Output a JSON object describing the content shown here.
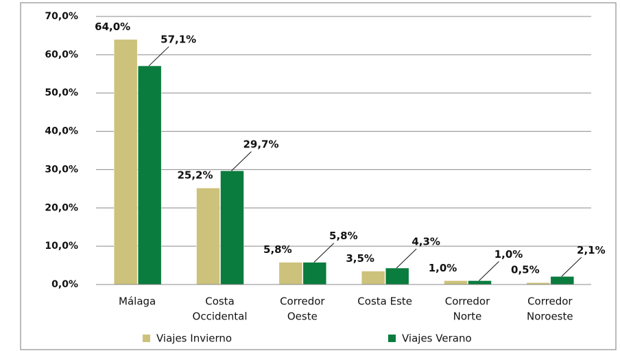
{
  "chart_data": {
    "type": "bar",
    "categories": [
      [
        "Málaga"
      ],
      [
        "Costa",
        "Occidental"
      ],
      [
        "Corredor",
        "Oeste"
      ],
      [
        "Costa Este"
      ],
      [
        "Corredor",
        "Norte"
      ],
      [
        "Corredor",
        "Noroeste"
      ]
    ],
    "series": [
      {
        "name": "Viajes Invierno",
        "color": "#cdc27b",
        "values": [
          64.0,
          25.2,
          5.8,
          3.5,
          1.0,
          0.5
        ],
        "value_labels": [
          "64,0%",
          "25,2%",
          "5,8%",
          "3,5%",
          "1,0%",
          "0,5%"
        ]
      },
      {
        "name": "Viajes Verano",
        "color": "#0a7c3e",
        "values": [
          57.1,
          29.7,
          5.8,
          4.3,
          1.0,
          2.1
        ],
        "value_labels": [
          "57,1%",
          "29,7%",
          "5,8%",
          "4,3%",
          "1,0%",
          "2,1%"
        ]
      }
    ],
    "ylim": [
      0,
      70
    ],
    "yticks": [
      {
        "value": 0,
        "label": "0,0%"
      },
      {
        "value": 10,
        "label": "10,0%"
      },
      {
        "value": 20,
        "label": "20,0%"
      },
      {
        "value": 30,
        "label": "30,0%"
      },
      {
        "value": 40,
        "label": "40,0%"
      },
      {
        "value": 50,
        "label": "50,0%"
      },
      {
        "value": 60,
        "label": "60,0%"
      },
      {
        "value": 70,
        "label": "70,0%"
      }
    ],
    "grid": true
  }
}
